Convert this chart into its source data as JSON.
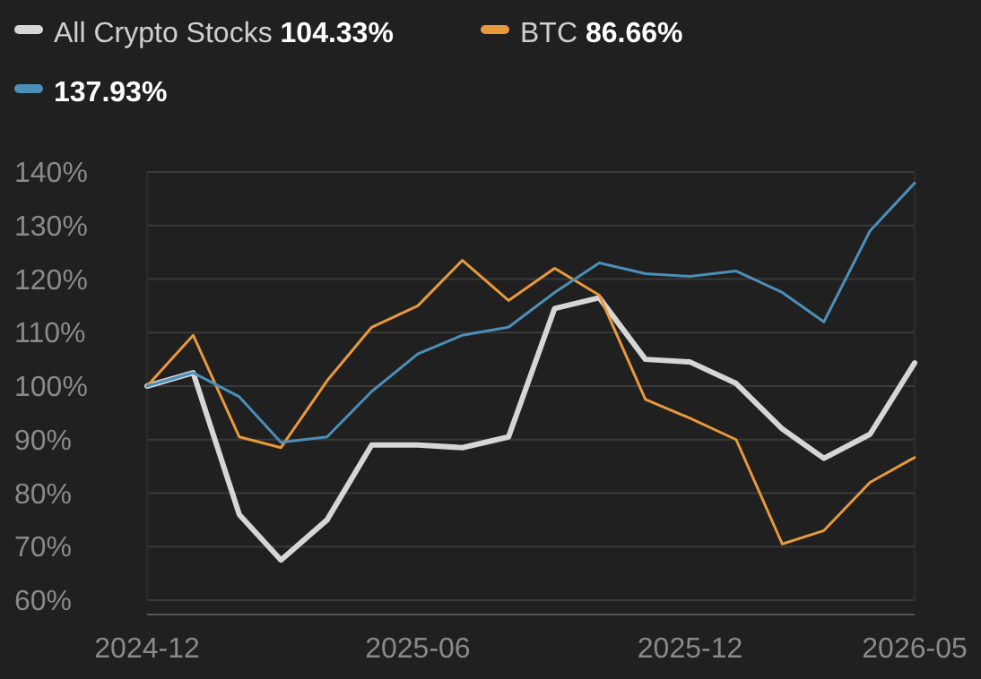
{
  "chart_data": {
    "type": "line",
    "x": [
      "2024-12",
      "2025-01",
      "2025-02",
      "2025-03",
      "2025-04",
      "2025-05",
      "2025-06",
      "2025-07",
      "2025-08",
      "2025-09",
      "2025-10",
      "2025-11",
      "2025-12",
      "2026-01",
      "2026-02",
      "2026-03",
      "2026-04",
      "2026-05"
    ],
    "series": [
      {
        "name": "All Crypto Stocks 104.33%",
        "color": "#d6d6d6",
        "values": [
          100,
          102.5,
          76,
          67.5,
          75,
          89,
          89,
          88.5,
          90.5,
          114.5,
          116.5,
          105,
          104.5,
          100.5,
          92,
          86.5,
          91,
          104.33
        ]
      },
      {
        "name": "BTC 86.66%",
        "color": "#e8993a",
        "values": [
          100,
          109.5,
          90.5,
          88.5,
          101,
          111,
          115,
          123.5,
          116,
          122,
          117,
          97.5,
          94,
          90,
          70.5,
          73,
          82,
          86.66
        ]
      },
      {
        "name": "137.93%",
        "color": "#4b8fb8",
        "values": [
          100,
          102.5,
          98,
          89.5,
          90.5,
          99,
          106,
          109.5,
          111,
          117.5,
          123,
          121,
          120.5,
          121.5,
          117.5,
          112,
          129,
          137.93
        ]
      }
    ],
    "xlim": [
      "2024-12",
      "2026-05"
    ],
    "xticks": [
      "2024-12",
      "2025-06",
      "2025-12",
      "2026-05"
    ],
    "ylim": [
      60,
      140
    ],
    "yticks": [
      {
        "value": 60,
        "label": "60%"
      },
      {
        "value": 70,
        "label": "70%"
      },
      {
        "value": 80,
        "label": "80%"
      },
      {
        "value": 90,
        "label": "90%"
      },
      {
        "value": 100,
        "label": "100%"
      },
      {
        "value": 110,
        "label": "110%"
      },
      {
        "value": 120,
        "label": "120%"
      },
      {
        "value": 130,
        "label": "130%"
      },
      {
        "value": 140,
        "label": "140%"
      }
    ],
    "grid": "y",
    "legend": "top",
    "marker": "none",
    "line_style": "solid"
  }
}
